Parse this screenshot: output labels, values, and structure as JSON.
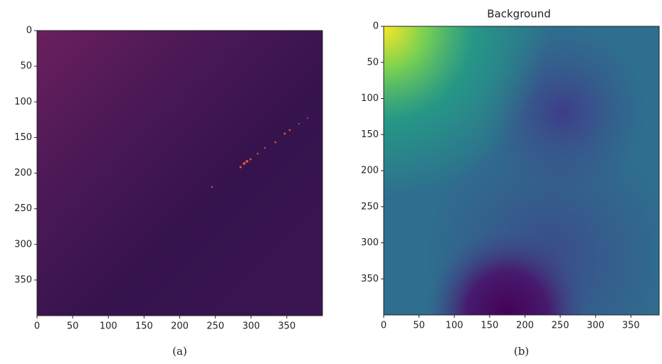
{
  "chart_data": [
    {
      "type": "image",
      "xlim": [
        0,
        400
      ],
      "ylim": [
        400,
        0
      ],
      "xticks": [
        0,
        50,
        100,
        150,
        200,
        250,
        300,
        350
      ],
      "yticks": [
        0,
        50,
        100,
        150,
        200,
        250,
        300,
        350
      ],
      "caption": "(a)"
    },
    {
      "type": "image",
      "title": "Background",
      "xlim": [
        0,
        390
      ],
      "ylim": [
        400,
        0
      ],
      "xticks": [
        0,
        50,
        100,
        150,
        200,
        250,
        300,
        350
      ],
      "yticks": [
        0,
        50,
        100,
        150,
        200,
        250,
        300,
        350
      ],
      "caption": "(b)"
    }
  ]
}
